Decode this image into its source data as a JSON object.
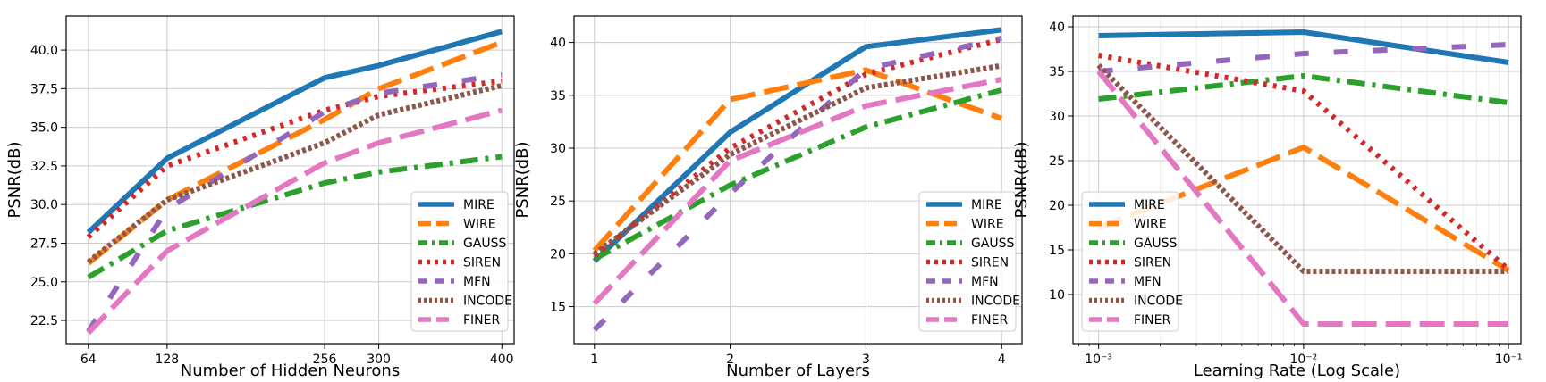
{
  "styles": {
    "MIRE": {
      "color": "#1f77b4",
      "dash": "none"
    },
    "WIRE": {
      "color": "#ff7f0e",
      "dash": "28 10"
    },
    "GAUSS": {
      "color": "#2ca02c",
      "dash": "20 8 4 8"
    },
    "SIREN": {
      "color": "#d62728",
      "dash": "4 7"
    },
    "MFN": {
      "color": "#9467bd",
      "dash": "16 28"
    },
    "INCODE": {
      "color": "#8c564b",
      "dash": "4 3"
    },
    "FINER": {
      "color": "#e377c2",
      "dash": "28 10"
    }
  },
  "chart_data": [
    {
      "type": "line",
      "xlabel": "Number of Hidden Neurons",
      "ylabel": "PSNR(dB)",
      "xscale": "linear",
      "xlim": [
        46,
        410
      ],
      "ylim": [
        21.0,
        42.2
      ],
      "x": [
        64,
        128,
        256,
        300,
        400
      ],
      "xticks": [
        64,
        128,
        256,
        300,
        400
      ],
      "xticklabels": [
        "64",
        "128",
        "256",
        "300",
        "400"
      ],
      "yticks": [
        22.5,
        25.0,
        27.5,
        30.0,
        32.5,
        35.0,
        37.5,
        40.0
      ],
      "yticklabels": [
        "22.5",
        "25.0",
        "27.5",
        "30.0",
        "32.5",
        "35.0",
        "37.5",
        "40.0"
      ],
      "grid": true,
      "legend_position": "lower-right",
      "series": [
        {
          "name": "MIRE",
          "values": [
            28.2,
            33.0,
            38.2,
            39.0,
            41.2
          ]
        },
        {
          "name": "WIRE",
          "values": [
            26.2,
            30.3,
            35.5,
            37.5,
            40.5
          ]
        },
        {
          "name": "GAUSS",
          "values": [
            25.3,
            28.3,
            31.4,
            32.1,
            33.1
          ]
        },
        {
          "name": "SIREN",
          "values": [
            27.9,
            32.5,
            36.1,
            37.0,
            38.0
          ]
        },
        {
          "name": "MFN",
          "values": [
            21.8,
            29.7,
            36.0,
            37.2,
            38.4
          ]
        },
        {
          "name": "INCODE",
          "values": [
            26.3,
            30.3,
            34.0,
            35.8,
            37.7
          ]
        },
        {
          "name": "FINER",
          "values": [
            21.7,
            27.0,
            32.7,
            34.0,
            36.1
          ]
        }
      ]
    },
    {
      "type": "line",
      "xlabel": "Number of Layers",
      "ylabel": "PSNR(dB)",
      "xscale": "linear",
      "xlim": [
        0.85,
        4.15
      ],
      "ylim": [
        11.5,
        42.5
      ],
      "x": [
        1,
        2,
        3,
        4
      ],
      "xticks": [
        1,
        2,
        3,
        4
      ],
      "xticklabels": [
        "1",
        "2",
        "3",
        "4"
      ],
      "yticks": [
        15,
        20,
        25,
        30,
        35,
        40
      ],
      "yticklabels": [
        "15",
        "20",
        "25",
        "30",
        "35",
        "40"
      ],
      "grid": true,
      "legend_position": "lower-right",
      "series": [
        {
          "name": "MIRE",
          "values": [
            19.3,
            31.5,
            39.6,
            41.2
          ]
        },
        {
          "name": "WIRE",
          "values": [
            20.3,
            34.6,
            37.4,
            32.8
          ]
        },
        {
          "name": "GAUSS",
          "values": [
            19.5,
            26.5,
            32.0,
            35.5
          ]
        },
        {
          "name": "SIREN",
          "values": [
            19.8,
            30.0,
            37.0,
            40.3
          ]
        },
        {
          "name": "MFN",
          "values": [
            12.8,
            25.7,
            37.5,
            40.4
          ]
        },
        {
          "name": "INCODE",
          "values": [
            20.0,
            29.4,
            35.7,
            37.8
          ]
        },
        {
          "name": "FINER",
          "values": [
            15.3,
            28.8,
            34.0,
            36.5
          ]
        }
      ]
    },
    {
      "type": "line",
      "xlabel": "Learning Rate (Log Scale)",
      "ylabel": "PSNR(dB)",
      "xscale": "log",
      "xlim": [
        0.00075,
        0.115
      ],
      "ylim": [
        4.5,
        41.2
      ],
      "x": [
        0.001,
        0.01,
        0.1
      ],
      "xticks": [
        0.001,
        0.01,
        0.1
      ],
      "xticklabels": [
        "10⁻³",
        "10⁻²",
        "10⁻¹"
      ],
      "yticks": [
        10,
        15,
        20,
        25,
        30,
        35,
        40
      ],
      "yticklabels": [
        "10",
        "15",
        "20",
        "25",
        "30",
        "35",
        "40"
      ],
      "grid": true,
      "minor_grid": true,
      "legend_position": "lower-left",
      "series": [
        {
          "name": "MIRE",
          "values": [
            39.0,
            39.4,
            36.0
          ]
        },
        {
          "name": "WIRE",
          "values": [
            17.5,
            26.5,
            12.7
          ]
        },
        {
          "name": "GAUSS",
          "values": [
            31.9,
            34.5,
            31.5
          ]
        },
        {
          "name": "SIREN",
          "values": [
            36.8,
            32.8,
            12.8
          ]
        },
        {
          "name": "MFN",
          "values": [
            35.0,
            37.0,
            38.0
          ]
        },
        {
          "name": "INCODE",
          "values": [
            35.7,
            12.6,
            12.6
          ]
        },
        {
          "name": "FINER",
          "values": [
            35.0,
            6.7,
            6.7
          ]
        }
      ]
    }
  ]
}
